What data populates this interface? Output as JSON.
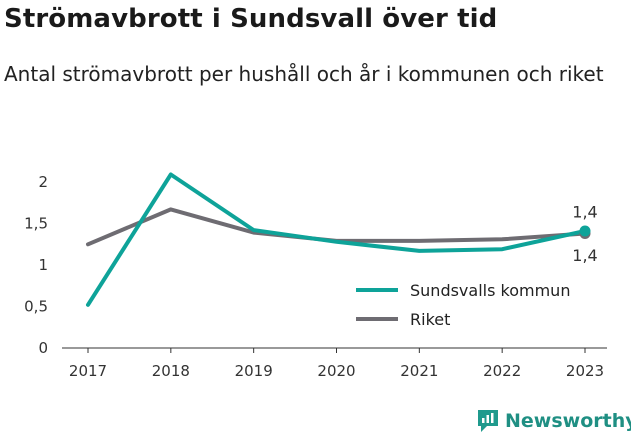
{
  "header": {
    "title": "Strömavbrott i Sundsvall över tid",
    "subtitle": "Antal strömavbrott per hushåll och år i kommunen och riket"
  },
  "brand": {
    "name": "Newsworthy",
    "color": "#1f9a8d"
  },
  "chart_data": {
    "type": "line",
    "x": [
      2017,
      2018,
      2019,
      2020,
      2021,
      2022,
      2023
    ],
    "yticks": [
      "0",
      "0,5",
      "1",
      "1,5",
      "2"
    ],
    "ylim": [
      0,
      2
    ],
    "grid": false,
    "legend_position": "bottom-right",
    "series": [
      {
        "name": "Sundsvalls kommun",
        "color": "#0ea399",
        "values": [
          0.52,
          2.09,
          1.42,
          1.28,
          1.17,
          1.19,
          1.41
        ]
      },
      {
        "name": "Riket",
        "color": "#6e6c72",
        "values": [
          1.25,
          1.67,
          1.39,
          1.29,
          1.29,
          1.31,
          1.38
        ]
      }
    ],
    "labels": [
      {
        "series": 1,
        "index": 6,
        "text": "1,4",
        "position": "above"
      },
      {
        "series": 0,
        "index": 6,
        "text": "1,4",
        "position": "below"
      }
    ]
  }
}
